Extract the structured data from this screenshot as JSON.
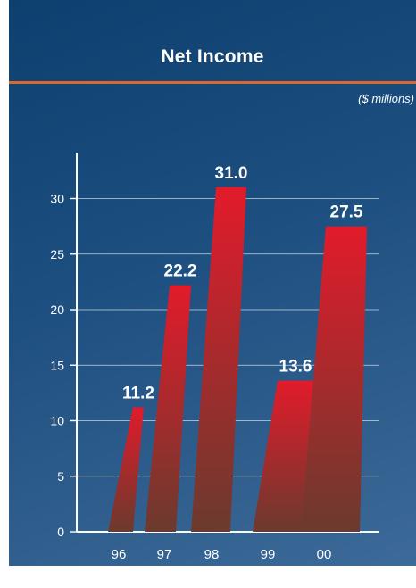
{
  "colors": {
    "panel_top": "#0d3f6f",
    "panel_bottom": "#3d6a98",
    "rule": "#d96a2e",
    "bar_top": "#e21b2b",
    "bar_bottom": "#6b3a2e",
    "text": "#ffffff"
  },
  "chart_data": {
    "type": "bar",
    "title": "Net Income",
    "units_label": "($ millions)",
    "categories": [
      "96",
      "97",
      "98",
      "99",
      "00"
    ],
    "values": [
      11.2,
      22.2,
      31.0,
      13.6,
      27.5
    ],
    "data_labels": [
      "11.2",
      "22.2",
      "31.0",
      "13.6",
      "27.5"
    ],
    "yticks": [
      0,
      5,
      10,
      15,
      20,
      25,
      30
    ],
    "ylim": [
      0,
      33
    ],
    "grid": true,
    "legend": "none"
  }
}
